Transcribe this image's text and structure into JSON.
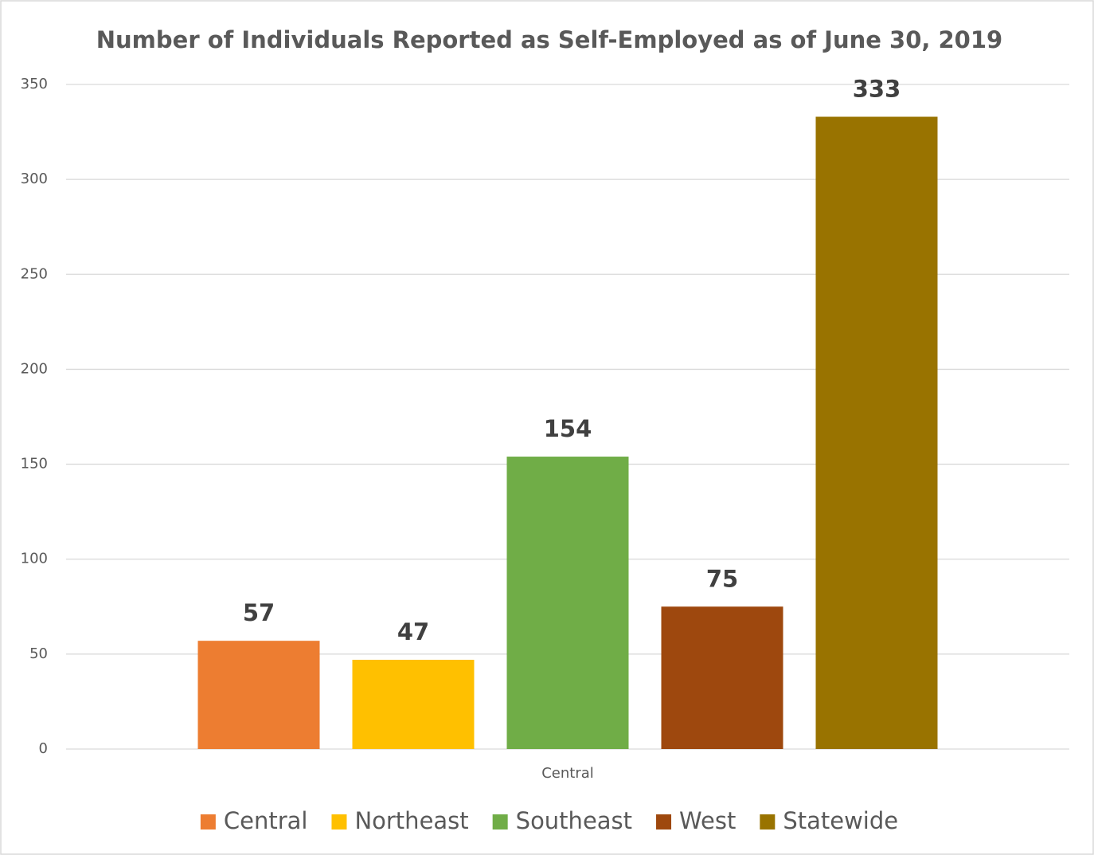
{
  "chart_data": {
    "type": "bar",
    "title": "Number of Individuals Reported as Self-Employed as of June 30, 2019",
    "categories": [
      "Central"
    ],
    "series": [
      {
        "name": "Central",
        "color": "#ED7D31",
        "values": [
          57
        ]
      },
      {
        "name": "Northeast",
        "color": "#FFC000",
        "values": [
          47
        ]
      },
      {
        "name": "Southeast",
        "color": "#70AD47",
        "values": [
          154
        ]
      },
      {
        "name": "West",
        "color": "#9E480E",
        "values": [
          75
        ]
      },
      {
        "name": "Statewide",
        "color": "#997300",
        "values": [
          333
        ]
      }
    ],
    "ylim": [
      0,
      350
    ],
    "yticks": [
      0,
      50,
      100,
      150,
      200,
      250,
      300,
      350
    ],
    "grid": true,
    "legend": "bottom",
    "data_labels": true
  }
}
